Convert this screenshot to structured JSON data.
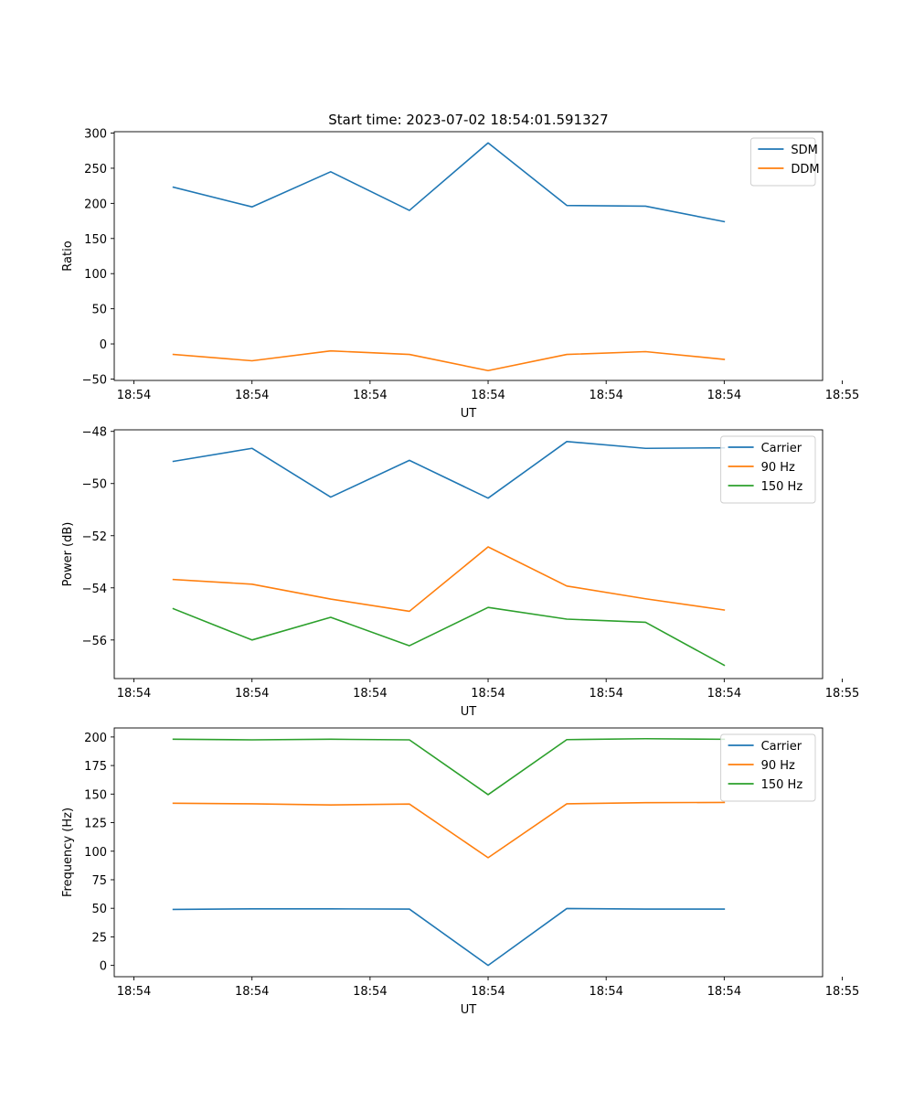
{
  "colors": {
    "blue": "#1f77b4",
    "orange": "#ff7f0e",
    "green": "#2ca02c"
  },
  "chart_data": [
    {
      "type": "line",
      "title": "Start time: 2023-07-02 18:54:01.591327",
      "xlabel": "UT",
      "ylabel": "Ratio",
      "x": [
        1,
        2,
        3,
        4,
        5,
        6,
        7,
        8
      ],
      "xlim": [
        0.25,
        9.25
      ],
      "xticks": [
        0.5,
        2,
        3.5,
        5,
        6.5,
        8,
        9.5
      ],
      "xtick_labels": [
        "18:54",
        "18:54",
        "18:54",
        "18:54",
        "18:54",
        "18:54",
        "18:55"
      ],
      "ylim": [
        -52,
        302
      ],
      "yticks": [
        -50,
        0,
        50,
        100,
        150,
        200,
        250,
        300
      ],
      "ytick_labels": [
        "−50",
        "0",
        "50",
        "100",
        "150",
        "200",
        "250",
        "300"
      ],
      "legend_position": "top-right",
      "series": [
        {
          "name": "SDM",
          "color": "blue",
          "values": [
            223,
            195,
            245,
            190,
            286,
            197,
            196,
            174
          ]
        },
        {
          "name": "DDM",
          "color": "orange",
          "values": [
            -15,
            -24,
            -10,
            -15,
            -38,
            -15,
            -11,
            -22
          ]
        }
      ]
    },
    {
      "type": "line",
      "title": "",
      "xlabel": "UT",
      "ylabel": "Power (dB)",
      "x": [
        1,
        2,
        3,
        4,
        5,
        6,
        7,
        8
      ],
      "xlim": [
        0.25,
        9.25
      ],
      "xticks": [
        0.5,
        2,
        3.5,
        5,
        6.5,
        8,
        9.5
      ],
      "xtick_labels": [
        "18:54",
        "18:54",
        "18:54",
        "18:54",
        "18:54",
        "18:54",
        "18:55"
      ],
      "ylim": [
        -57.48,
        -47.94
      ],
      "yticks": [
        -56,
        -54,
        -52,
        -50,
        -48
      ],
      "ytick_labels": [
        "−56",
        "−54",
        "−52",
        "−50",
        "−48"
      ],
      "legend_position": "top-right",
      "series": [
        {
          "name": "Carrier",
          "color": "blue",
          "values": [
            -49.15,
            -48.65,
            -50.52,
            -49.11,
            -50.56,
            -48.39,
            -48.65,
            -48.63
          ]
        },
        {
          "name": "90 Hz",
          "color": "orange",
          "values": [
            -53.68,
            -53.86,
            -54.43,
            -54.9,
            -52.43,
            -53.93,
            -54.42,
            -54.85
          ]
        },
        {
          "name": "150 Hz",
          "color": "green",
          "values": [
            -54.8,
            -56.0,
            -55.13,
            -56.22,
            -54.75,
            -55.2,
            -55.32,
            -56.97
          ]
        }
      ]
    },
    {
      "type": "line",
      "title": "",
      "xlabel": "UT",
      "ylabel": "Frequency (Hz)",
      "x": [
        1,
        2,
        3,
        4,
        5,
        6,
        7,
        8
      ],
      "xlim": [
        0.25,
        9.25
      ],
      "xticks": [
        0.5,
        2,
        3.5,
        5,
        6.5,
        8,
        9.5
      ],
      "xtick_labels": [
        "18:54",
        "18:54",
        "18:54",
        "18:54",
        "18:54",
        "18:54",
        "18:55"
      ],
      "ylim": [
        -9.9,
        207.9
      ],
      "yticks": [
        0,
        25,
        50,
        75,
        100,
        125,
        150,
        175,
        200
      ],
      "ytick_labels": [
        "0",
        "25",
        "50",
        "75",
        "100",
        "125",
        "150",
        "175",
        "200"
      ],
      "legend_position": "top-right",
      "series": [
        {
          "name": "Carrier",
          "color": "blue",
          "values": [
            49,
            49.5,
            49.5,
            49.3,
            0,
            49.8,
            49.3,
            49.3
          ]
        },
        {
          "name": "90 Hz",
          "color": "orange",
          "values": [
            142,
            141.5,
            140.5,
            141.3,
            94.3,
            141.5,
            142.5,
            142.7
          ]
        },
        {
          "name": "150 Hz",
          "color": "green",
          "values": [
            198,
            197.5,
            198,
            197.5,
            149.5,
            197.7,
            198.5,
            198
          ]
        }
      ]
    }
  ]
}
